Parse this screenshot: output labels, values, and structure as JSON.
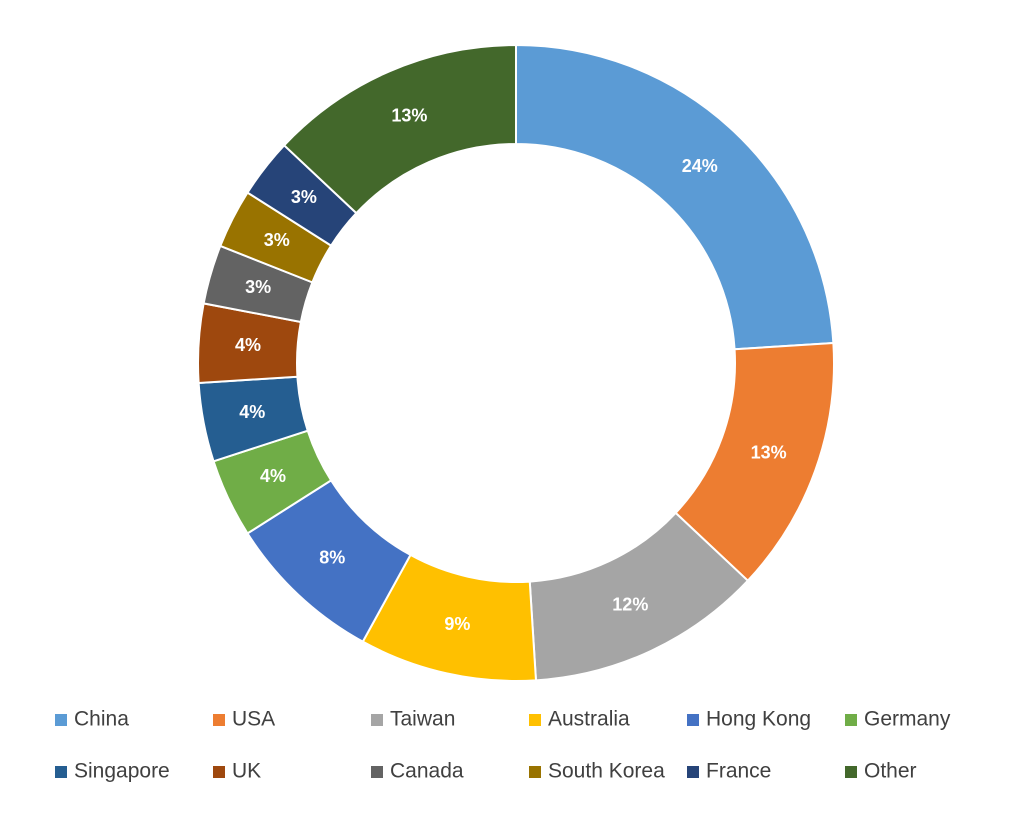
{
  "chart_data": {
    "type": "donut",
    "categories": [
      "China",
      "USA",
      "Taiwan",
      "Australia",
      "Hong Kong",
      "Germany",
      "Singapore",
      "UK",
      "Canada",
      "South Korea",
      "France",
      "Other"
    ],
    "values": [
      24,
      13,
      12,
      9,
      8,
      4,
      4,
      4,
      3,
      3,
      3,
      13
    ],
    "value_labels": [
      "24%",
      "13%",
      "12%",
      "9%",
      "8%",
      "4%",
      "4%",
      "4%",
      "3%",
      "3%",
      "3%",
      "13%"
    ],
    "colors": [
      "#5b9bd5",
      "#ed7d31",
      "#a5a5a5",
      "#ffc000",
      "#4472c4",
      "#70ad47",
      "#255e91",
      "#9e480e",
      "#636363",
      "#997300",
      "#264478",
      "#43682b"
    ],
    "legend": "bottom"
  }
}
